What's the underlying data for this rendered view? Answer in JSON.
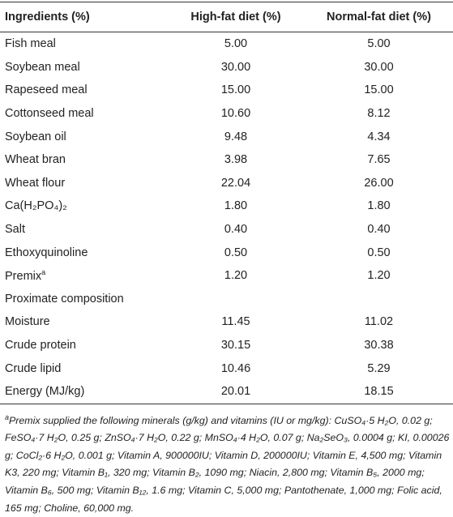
{
  "table": {
    "header": [
      "Ingredients (%)",
      "High-fat diet (%)",
      "Normal-fat diet (%)"
    ],
    "rows": [
      [
        "Fish meal",
        "5.00",
        "5.00"
      ],
      [
        "Soybean meal",
        "30.00",
        "30.00"
      ],
      [
        "Rapeseed meal",
        "15.00",
        "15.00"
      ],
      [
        "Cottonseed meal",
        "10.60",
        "8.12"
      ],
      [
        "Soybean oil",
        "9.48",
        "4.34"
      ],
      [
        "Wheat bran",
        "3.98",
        "7.65"
      ],
      [
        "Wheat flour",
        "22.04",
        "26.00"
      ],
      [
        "Ca(H₂PO₄)₂",
        "1.80",
        "1.80"
      ],
      [
        "Salt",
        "0.40",
        "0.40"
      ],
      [
        "Ethoxyquinoline",
        "0.50",
        "0.50"
      ],
      [
        "Premix",
        "1.20",
        "1.20"
      ],
      [
        "Proximate composition"
      ],
      [
        "Moisture",
        "11.45",
        "11.02"
      ],
      [
        "Crude protein",
        "30.15",
        "30.38"
      ],
      [
        "Crude lipid",
        "10.46",
        "5.29"
      ],
      [
        "Energy (MJ/kg)",
        "20.01",
        "18.15"
      ]
    ],
    "premix_marker": "a"
  },
  "footnote": {
    "marker": "a",
    "text": "Premix supplied the following minerals (g/kg) and vitamins (IU or mg/kg): CuSO₄·5 H₂O, 0.02 g; FeSO₄·7 H₂O, 0.25 g; ZnSO₄·7 H₂O, 0.22 g; MnSO₄·4 H₂O, 0.07 g; Na₂SeO₃, 0.0004 g; KI, 0.00026 g; CoCl₂·6 H₂O, 0.001 g; Vitamin A, 900000IU; Vitamin D, 200000IU; Vitamin E, 4,500 mg; Vitamin K3, 220 mg; Vitamin B₁, 320 mg; Vitamin B₂, 1090 mg; Niacin, 2,800 mg; Vitamin B₅, 2000 mg; Vitamin B₆, 500 mg; Vitamin B₁₂, 1.6 mg; Vitamin C, 5,000 mg; Pantothenate, 1,000 mg; Folic acid, 165 mg; Choline, 60,000 mg."
  }
}
